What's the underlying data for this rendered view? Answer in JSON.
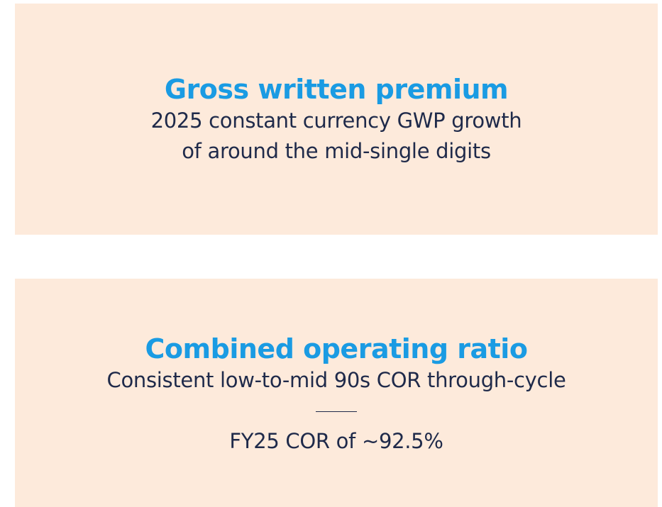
{
  "cards": [
    {
      "title": "Gross written premium",
      "lines": [
        "2025 constant currency GWP growth",
        "of around the mid-single digits"
      ]
    },
    {
      "title": "Combined operating ratio",
      "lines": [
        "Consistent low-to-mid 90s COR through-cycle",
        "FY25 COR of ~92.5%"
      ]
    }
  ]
}
